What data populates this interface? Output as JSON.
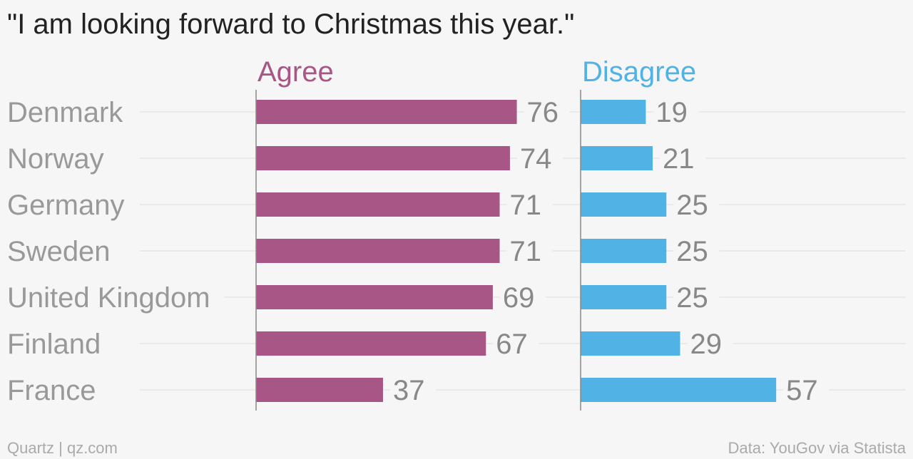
{
  "title": "\"I am looking forward to Christmas this year.\"",
  "footer": {
    "left": "Quartz | qz.com",
    "right": "Data: YouGov via Statista"
  },
  "colors": {
    "agree": "#a85685",
    "disagree": "#51b2e5",
    "background": "#f6f6f6",
    "label": "#999999",
    "grid": "#e6e6e6"
  },
  "chart_data": {
    "type": "bar",
    "orientation": "horizontal",
    "categories": [
      "Denmark",
      "Norway",
      "Germany",
      "Sweden",
      "United Kingdom",
      "Finland",
      "France"
    ],
    "series": [
      {
        "name": "Agree",
        "values": [
          76,
          74,
          71,
          71,
          69,
          67,
          37
        ]
      },
      {
        "name": "Disagree",
        "values": [
          19,
          21,
          25,
          25,
          25,
          29,
          57
        ]
      }
    ],
    "grid": true,
    "legend": "top"
  }
}
